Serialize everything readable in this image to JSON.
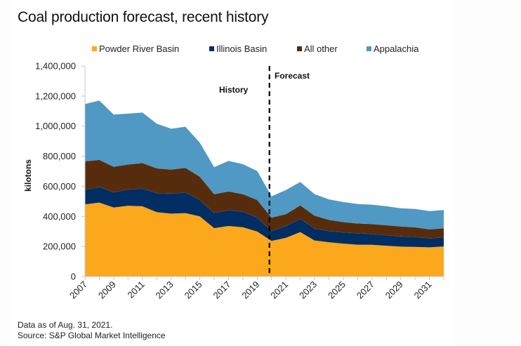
{
  "chart_data": {
    "type": "area",
    "stacked": true,
    "title": "Coal production forecast, recent history",
    "xlabel": "",
    "ylabel": "kilotons",
    "ylim": [
      0,
      1400000
    ],
    "yticks": [
      0,
      200000,
      400000,
      600000,
      800000,
      1000000,
      1200000,
      1400000
    ],
    "ytick_labels": [
      "0",
      "200,000",
      "400,000",
      "600,000",
      "800,000",
      "1,000,000",
      "1,200,000",
      "1,400,000"
    ],
    "x": [
      2007,
      2008,
      2009,
      2010,
      2011,
      2012,
      2013,
      2014,
      2015,
      2016,
      2017,
      2018,
      2019,
      2020,
      2021,
      2022,
      2023,
      2024,
      2025,
      2026,
      2027,
      2028,
      2029,
      2030,
      2031,
      2032
    ],
    "xtick_labels": [
      "2007",
      "2009",
      "2011",
      "2013",
      "2015",
      "2017",
      "2019",
      "2021",
      "2023",
      "2025",
      "2027",
      "2029",
      "2031"
    ],
    "legend_position": "top",
    "grid": false,
    "series": [
      {
        "name": "Powder River Basin",
        "color": "#FBA81C",
        "values": [
          480000,
          492000,
          459000,
          471000,
          467000,
          428000,
          418000,
          422000,
          400000,
          322000,
          336000,
          328000,
          299000,
          237000,
          257000,
          296000,
          240000,
          228000,
          219000,
          212000,
          211000,
          205000,
          199000,
          197000,
          194000,
          200000
        ]
      },
      {
        "name": "Illinois Basin",
        "color": "#002D62",
        "values": [
          97000,
          104000,
          101000,
          108000,
          118000,
          127000,
          133000,
          138000,
          109000,
          101000,
          106000,
          103000,
          93000,
          66000,
          80000,
          87000,
          79000,
          75000,
          74000,
          76000,
          72000,
          70000,
          68000,
          66000,
          61000,
          60000
        ]
      },
      {
        "name": "All other",
        "color": "#572C0C",
        "values": [
          189000,
          180000,
          170000,
          166000,
          170000,
          164000,
          160000,
          163000,
          155000,
          125000,
          124000,
          117000,
          117000,
          89000,
          78000,
          90000,
          86000,
          74000,
          69000,
          65000,
          66000,
          66000,
          66000,
          64000,
          59000,
          61000
        ]
      },
      {
        "name": "Appalachia",
        "color": "#4F99C4",
        "values": [
          381000,
          394000,
          347000,
          338000,
          335000,
          297000,
          272000,
          273000,
          226000,
          179000,
          203000,
          199000,
          193000,
          141000,
          160000,
          156000,
          143000,
          136000,
          133000,
          129000,
          129000,
          126000,
          121000,
          122000,
          121000,
          121000
        ]
      }
    ],
    "annotations": {
      "divider_year": 2020,
      "history_label": "History",
      "forecast_label": "Forecast"
    }
  },
  "footer": {
    "note": "Data as of Aug. 31, 2021.",
    "source": "Source: S&P Global Market Intelligence"
  }
}
